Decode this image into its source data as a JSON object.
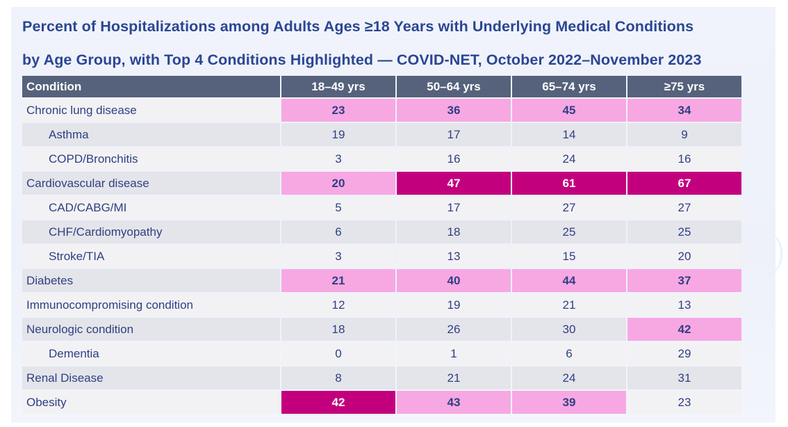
{
  "title_line1": "Percent of Hospitalizations among Adults Ages ≥18 Years with Underlying Medical Conditions",
  "title_line2": "by Age Group, with Top 4 Conditions Highlighted — COVID-NET, October 2022–November 2023",
  "colors": {
    "header_bg": "#56627b",
    "highlight_light": "#f7a8e3",
    "highlight_dark": "#c2007e",
    "text": "#2f4082"
  },
  "chart_data": {
    "type": "table",
    "title": "Percent of Hospitalizations among Adults Ages ≥18 Years with Underlying Medical Conditions by Age Group, with Top 4 Conditions Highlighted — COVID-NET, October 2022–November 2023",
    "columns": [
      "Condition",
      "18–49 yrs",
      "50–64 yrs",
      "65–74 yrs",
      "≥75 yrs"
    ],
    "rows": [
      {
        "label": "Chronic lung disease",
        "sub": false,
        "values": [
          23,
          36,
          45,
          34
        ],
        "highlight": [
          "light",
          "light",
          "light",
          "light"
        ]
      },
      {
        "label": "Asthma",
        "sub": true,
        "values": [
          19,
          17,
          14,
          9
        ],
        "highlight": [
          "",
          "",
          "",
          ""
        ]
      },
      {
        "label": "COPD/Bronchitis",
        "sub": true,
        "values": [
          3,
          16,
          24,
          16
        ],
        "highlight": [
          "",
          "",
          "",
          ""
        ]
      },
      {
        "label": "Cardiovascular disease",
        "sub": false,
        "values": [
          20,
          47,
          61,
          67
        ],
        "highlight": [
          "light",
          "dark",
          "dark",
          "dark"
        ]
      },
      {
        "label": "CAD/CABG/MI",
        "sub": true,
        "values": [
          5,
          17,
          27,
          27
        ],
        "highlight": [
          "",
          "",
          "",
          ""
        ]
      },
      {
        "label": "CHF/Cardiomyopathy",
        "sub": true,
        "values": [
          6,
          18,
          25,
          25
        ],
        "highlight": [
          "",
          "",
          "",
          ""
        ]
      },
      {
        "label": "Stroke/TIA",
        "sub": true,
        "values": [
          3,
          13,
          15,
          20
        ],
        "highlight": [
          "",
          "",
          "",
          ""
        ]
      },
      {
        "label": "Diabetes",
        "sub": false,
        "values": [
          21,
          40,
          44,
          37
        ],
        "highlight": [
          "light",
          "light",
          "light",
          "light"
        ]
      },
      {
        "label": "Immunocompromising condition",
        "sub": false,
        "values": [
          12,
          19,
          21,
          13
        ],
        "highlight": [
          "",
          "",
          "",
          ""
        ]
      },
      {
        "label": "Neurologic condition",
        "sub": false,
        "values": [
          18,
          26,
          30,
          42
        ],
        "highlight": [
          "",
          "",
          "",
          "light"
        ]
      },
      {
        "label": "Dementia",
        "sub": true,
        "values": [
          0,
          1,
          6,
          29
        ],
        "highlight": [
          "",
          "",
          "",
          ""
        ]
      },
      {
        "label": "Renal Disease",
        "sub": false,
        "values": [
          8,
          21,
          24,
          31
        ],
        "highlight": [
          "",
          "",
          "",
          ""
        ]
      },
      {
        "label": "Obesity",
        "sub": false,
        "values": [
          42,
          43,
          39,
          23
        ],
        "highlight": [
          "dark",
          "light",
          "light",
          ""
        ]
      }
    ]
  }
}
